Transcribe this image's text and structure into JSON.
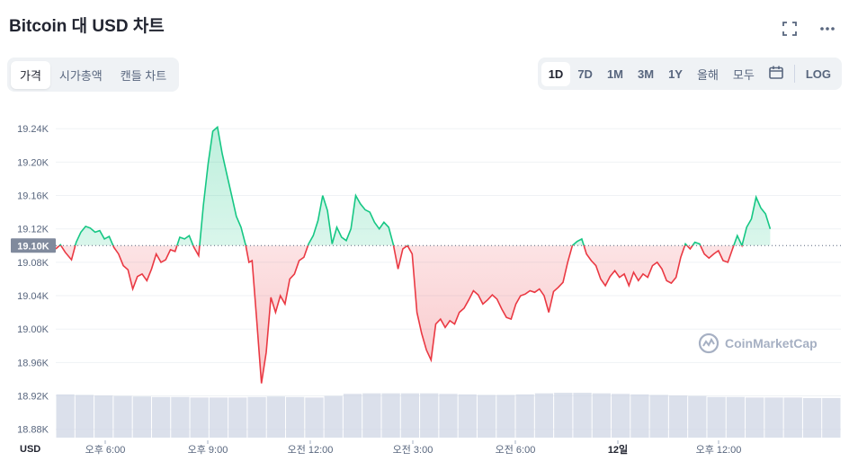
{
  "title": "Bitcoin 대 USD 차트",
  "icons": {
    "fullscreen": "fullscreen-icon",
    "more": "more-icon",
    "calendar": "calendar-icon"
  },
  "left_tabs": [
    {
      "label": "가격",
      "active": true
    },
    {
      "label": "시가총액",
      "active": false
    },
    {
      "label": "캔들 차트",
      "active": false
    }
  ],
  "right_tabs": [
    {
      "label": "1D",
      "active": true
    },
    {
      "label": "7D",
      "active": false
    },
    {
      "label": "1M",
      "active": false
    },
    {
      "label": "3M",
      "active": false
    },
    {
      "label": "1Y",
      "active": false
    },
    {
      "label": "올해",
      "active": false
    },
    {
      "label": "모두",
      "active": false
    }
  ],
  "log_label": "LOG",
  "watermark": "CoinMarketCap",
  "colors": {
    "up": "#16c784",
    "down": "#ea3943",
    "grid": "#eff2f5",
    "axis_text": "#58667e",
    "ref_box": "#808a9d"
  },
  "chart_data": {
    "type": "area",
    "baseline": 19100,
    "baseline_label": "19.10K",
    "y_unit": "USD",
    "ylim": [
      18870,
      19265
    ],
    "yticks": [
      18880,
      18920,
      18960,
      19000,
      19040,
      19080,
      19120,
      19160,
      19200,
      19240
    ],
    "ytick_labels": [
      "18.88K",
      "18.92K",
      "18.96K",
      "19.00K",
      "19.04K",
      "19.08K",
      "19.12K",
      "19.16K",
      "19.20K",
      "19.24K"
    ],
    "xlim": [
      0,
      1
    ],
    "xtick_labels": [
      "오후 6:00",
      "오후 9:00",
      "오전 12:00",
      "오전 3:00",
      "오전 6:00",
      "12일",
      "오후 12:00"
    ],
    "grid": true,
    "price": [
      [
        0.0,
        19096
      ],
      [
        0.006,
        19101
      ],
      [
        0.012,
        19092
      ],
      [
        0.02,
        19083
      ],
      [
        0.026,
        19104
      ],
      [
        0.032,
        19116
      ],
      [
        0.038,
        19123
      ],
      [
        0.044,
        19121
      ],
      [
        0.05,
        19116
      ],
      [
        0.056,
        19118
      ],
      [
        0.062,
        19108
      ],
      [
        0.068,
        19111
      ],
      [
        0.074,
        19098
      ],
      [
        0.08,
        19090
      ],
      [
        0.086,
        19076
      ],
      [
        0.092,
        19071
      ],
      [
        0.098,
        19048
      ],
      [
        0.104,
        19063
      ],
      [
        0.11,
        19066
      ],
      [
        0.116,
        19058
      ],
      [
        0.122,
        19072
      ],
      [
        0.128,
        19090
      ],
      [
        0.134,
        19080
      ],
      [
        0.14,
        19083
      ],
      [
        0.146,
        19095
      ],
      [
        0.152,
        19093
      ],
      [
        0.158,
        19110
      ],
      [
        0.164,
        19108
      ],
      [
        0.17,
        19112
      ],
      [
        0.176,
        19098
      ],
      [
        0.182,
        19088
      ],
      [
        0.188,
        19148
      ],
      [
        0.194,
        19198
      ],
      [
        0.2,
        19237
      ],
      [
        0.206,
        19242
      ],
      [
        0.212,
        19210
      ],
      [
        0.218,
        19185
      ],
      [
        0.224,
        19160
      ],
      [
        0.23,
        19135
      ],
      [
        0.236,
        19122
      ],
      [
        0.242,
        19100
      ],
      [
        0.246,
        19080
      ],
      [
        0.25,
        19082
      ],
      [
        0.256,
        19010
      ],
      [
        0.262,
        18935
      ],
      [
        0.268,
        18972
      ],
      [
        0.274,
        19038
      ],
      [
        0.28,
        19020
      ],
      [
        0.286,
        19040
      ],
      [
        0.292,
        19030
      ],
      [
        0.298,
        19060
      ],
      [
        0.304,
        19066
      ],
      [
        0.31,
        19082
      ],
      [
        0.316,
        19086
      ],
      [
        0.322,
        19102
      ],
      [
        0.328,
        19112
      ],
      [
        0.334,
        19130
      ],
      [
        0.34,
        19160
      ],
      [
        0.346,
        19142
      ],
      [
        0.352,
        19102
      ],
      [
        0.358,
        19122
      ],
      [
        0.364,
        19110
      ],
      [
        0.37,
        19106
      ],
      [
        0.376,
        19120
      ],
      [
        0.382,
        19160
      ],
      [
        0.388,
        19150
      ],
      [
        0.394,
        19143
      ],
      [
        0.4,
        19140
      ],
      [
        0.406,
        19128
      ],
      [
        0.412,
        19120
      ],
      [
        0.418,
        19128
      ],
      [
        0.424,
        19122
      ],
      [
        0.43,
        19101
      ],
      [
        0.436,
        19072
      ],
      [
        0.442,
        19096
      ],
      [
        0.448,
        19100
      ],
      [
        0.454,
        19090
      ],
      [
        0.46,
        19020
      ],
      [
        0.466,
        18995
      ],
      [
        0.472,
        18975
      ],
      [
        0.478,
        18963
      ],
      [
        0.484,
        19006
      ],
      [
        0.49,
        19012
      ],
      [
        0.496,
        19002
      ],
      [
        0.502,
        19010
      ],
      [
        0.508,
        19006
      ],
      [
        0.514,
        19020
      ],
      [
        0.52,
        19025
      ],
      [
        0.526,
        19035
      ],
      [
        0.532,
        19046
      ],
      [
        0.538,
        19041
      ],
      [
        0.544,
        19030
      ],
      [
        0.55,
        19035
      ],
      [
        0.556,
        19041
      ],
      [
        0.562,
        19036
      ],
      [
        0.568,
        19024
      ],
      [
        0.574,
        19014
      ],
      [
        0.58,
        19012
      ],
      [
        0.586,
        19030
      ],
      [
        0.592,
        19040
      ],
      [
        0.598,
        19042
      ],
      [
        0.604,
        19046
      ],
      [
        0.61,
        19044
      ],
      [
        0.616,
        19048
      ],
      [
        0.622,
        19040
      ],
      [
        0.628,
        19020
      ],
      [
        0.634,
        19045
      ],
      [
        0.64,
        19050
      ],
      [
        0.646,
        19056
      ],
      [
        0.652,
        19080
      ],
      [
        0.658,
        19100
      ],
      [
        0.664,
        19105
      ],
      [
        0.67,
        19108
      ],
      [
        0.676,
        19090
      ],
      [
        0.682,
        19082
      ],
      [
        0.688,
        19076
      ],
      [
        0.694,
        19060
      ],
      [
        0.7,
        19052
      ],
      [
        0.706,
        19063
      ],
      [
        0.712,
        19070
      ],
      [
        0.718,
        19062
      ],
      [
        0.724,
        19066
      ],
      [
        0.73,
        19052
      ],
      [
        0.736,
        19068
      ],
      [
        0.742,
        19058
      ],
      [
        0.748,
        19066
      ],
      [
        0.754,
        19062
      ],
      [
        0.76,
        19076
      ],
      [
        0.766,
        19080
      ],
      [
        0.772,
        19072
      ],
      [
        0.778,
        19058
      ],
      [
        0.784,
        19055
      ],
      [
        0.79,
        19062
      ],
      [
        0.796,
        19086
      ],
      [
        0.802,
        19102
      ],
      [
        0.808,
        19096
      ],
      [
        0.814,
        19104
      ],
      [
        0.82,
        19102
      ],
      [
        0.826,
        19090
      ],
      [
        0.832,
        19085
      ],
      [
        0.838,
        19090
      ],
      [
        0.844,
        19094
      ],
      [
        0.85,
        19082
      ],
      [
        0.856,
        19080
      ],
      [
        0.862,
        19096
      ],
      [
        0.868,
        19112
      ],
      [
        0.874,
        19100
      ],
      [
        0.88,
        19122
      ],
      [
        0.886,
        19132
      ],
      [
        0.892,
        19158
      ],
      [
        0.898,
        19145
      ],
      [
        0.904,
        19138
      ],
      [
        0.91,
        19120
      ]
    ],
    "volume": [
      0.83,
      0.82,
      0.81,
      0.8,
      0.79,
      0.78,
      0.78,
      0.77,
      0.77,
      0.77,
      0.78,
      0.79,
      0.78,
      0.77,
      0.8,
      0.84,
      0.85,
      0.85,
      0.85,
      0.85,
      0.84,
      0.83,
      0.82,
      0.82,
      0.83,
      0.85,
      0.86,
      0.86,
      0.85,
      0.84,
      0.83,
      0.82,
      0.81,
      0.8,
      0.78,
      0.78,
      0.77,
      0.77,
      0.77,
      0.76,
      0.76
    ]
  }
}
